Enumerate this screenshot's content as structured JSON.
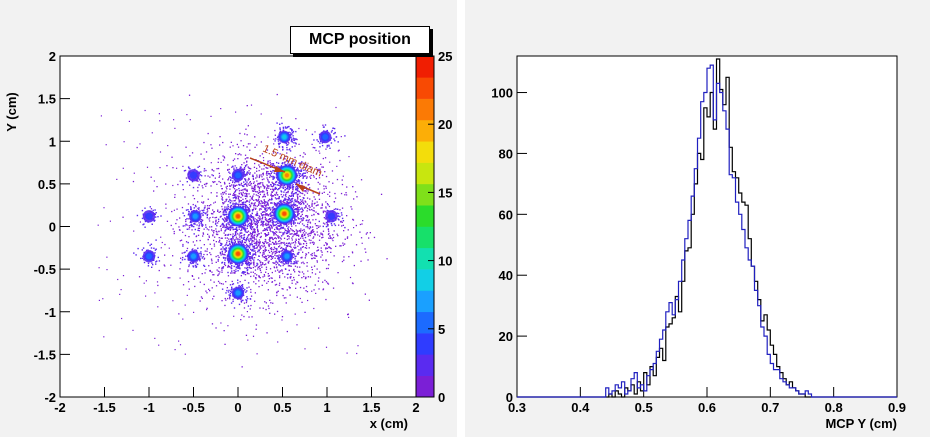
{
  "chart_data": [
    {
      "type": "heatmap",
      "title": "MCP position",
      "xlabel": "x (cm)",
      "ylabel": "Y (cm)",
      "xlim": [
        -2,
        2
      ],
      "ylim": [
        -2,
        2
      ],
      "xticks": [
        "-2",
        "-1.5",
        "-1",
        "-0.5",
        "0",
        "0.5",
        "1",
        "1.5",
        "2"
      ],
      "yticks": [
        "-2",
        "-1.5",
        "-1",
        "-0.5",
        "0",
        "0.5",
        "1",
        "1.5",
        "2"
      ],
      "colorbar": {
        "range": [
          0,
          25
        ],
        "ticks": [
          "0",
          "5",
          "10",
          "15",
          "20",
          "25"
        ],
        "colors": [
          "#7b1fd6",
          "#5a2bf0",
          "#2f3cff",
          "#1c6bff",
          "#1aa0ff",
          "#12cfe6",
          "#12e0b0",
          "#17e06a",
          "#2bdc2b",
          "#7fe01a",
          "#c8e60f",
          "#f3dd0b",
          "#fcae07",
          "#fb7a05",
          "#f84a03",
          "#f01e02"
        ]
      },
      "clusters": [
        {
          "x": 0.0,
          "y": 0.12,
          "peak": 22
        },
        {
          "x": 0.52,
          "y": 0.15,
          "peak": 22
        },
        {
          "x": 0.0,
          "y": -0.32,
          "peak": 22
        },
        {
          "x": 0.55,
          "y": 0.6,
          "peak": 21
        },
        {
          "x": 0.52,
          "y": 1.05,
          "peak": 8
        },
        {
          "x": -0.48,
          "y": 0.12,
          "peak": 7
        },
        {
          "x": -0.5,
          "y": -0.35,
          "peak": 6
        },
        {
          "x": 0.55,
          "y": -0.35,
          "peak": 6
        },
        {
          "x": 0.0,
          "y": -0.78,
          "peak": 6
        },
        {
          "x": 0.0,
          "y": 0.6,
          "peak": 5
        },
        {
          "x": 0.98,
          "y": 1.05,
          "peak": 4
        },
        {
          "x": -1.0,
          "y": -0.35,
          "peak": 4
        },
        {
          "x": -1.0,
          "y": 0.12,
          "peak": 3
        },
        {
          "x": -0.5,
          "y": 0.6,
          "peak": 3
        },
        {
          "x": 1.05,
          "y": 0.12,
          "peak": 3
        }
      ],
      "annotation": "1.5 mm diam"
    },
    {
      "type": "line",
      "xlabel": "MCP Y (cm)",
      "xlim": [
        0.3,
        0.9
      ],
      "ylim": [
        0,
        112
      ],
      "xticks": [
        "0.3",
        "0.4",
        "0.5",
        "0.6",
        "0.7",
        "0.8",
        "0.9"
      ],
      "yticks": [
        "0",
        "20",
        "40",
        "60",
        "80",
        "100"
      ],
      "series": [
        {
          "color": "#000000",
          "bin_start": 0.3,
          "bin_width": 0.005,
          "values": [
            0,
            0,
            0,
            0,
            0,
            0,
            0,
            0,
            0,
            0,
            0,
            0,
            0,
            0,
            0,
            0,
            0,
            0,
            0,
            0,
            0,
            0,
            0,
            0,
            0,
            0,
            0,
            0,
            0,
            1,
            0,
            2,
            1,
            0,
            3,
            2,
            4,
            1,
            5,
            2,
            8,
            4,
            10,
            7,
            13,
            16,
            12,
            23,
            24,
            26,
            33,
            28,
            38,
            48,
            49,
            60,
            70,
            80,
            78,
            95,
            92,
            100,
            88,
            111,
            101,
            96,
            105,
            82,
            74,
            72,
            67,
            64,
            63,
            52,
            43,
            38,
            32,
            25,
            27,
            22,
            17,
            14,
            10,
            8,
            6,
            4,
            5,
            3,
            2,
            1,
            1,
            0,
            0,
            0,
            0,
            0,
            0,
            0,
            0,
            0,
            0,
            0,
            0,
            0,
            0,
            0,
            0,
            0,
            0,
            0,
            0,
            0,
            0,
            0,
            0,
            0,
            0,
            0,
            0,
            0
          ]
        },
        {
          "color": "#2020c0",
          "bin_start": 0.3,
          "bin_width": 0.005,
          "values": [
            0,
            0,
            0,
            0,
            0,
            0,
            0,
            0,
            0,
            0,
            0,
            0,
            0,
            0,
            0,
            0,
            0,
            0,
            0,
            0,
            0,
            0,
            0,
            0,
            0,
            0,
            0,
            0,
            3,
            1,
            2,
            4,
            3,
            5,
            1,
            2,
            6,
            8,
            3,
            4,
            2,
            7,
            9,
            11,
            15,
            19,
            22,
            28,
            31,
            27,
            32,
            38,
            45,
            52,
            58,
            66,
            75,
            85,
            97,
            100,
            108,
            109,
            91,
            103,
            100,
            94,
            88,
            73,
            72,
            64,
            60,
            55,
            49,
            45,
            43,
            35,
            30,
            23,
            20,
            14,
            11,
            9,
            9,
            6,
            5,
            4,
            3,
            3,
            2,
            1,
            1,
            2,
            1,
            0,
            0,
            0,
            0,
            0,
            0,
            0,
            0,
            0,
            0,
            0,
            0,
            0,
            0,
            0,
            0,
            0,
            0,
            0,
            0,
            0,
            0,
            0,
            0,
            0,
            0,
            0
          ]
        }
      ]
    }
  ]
}
